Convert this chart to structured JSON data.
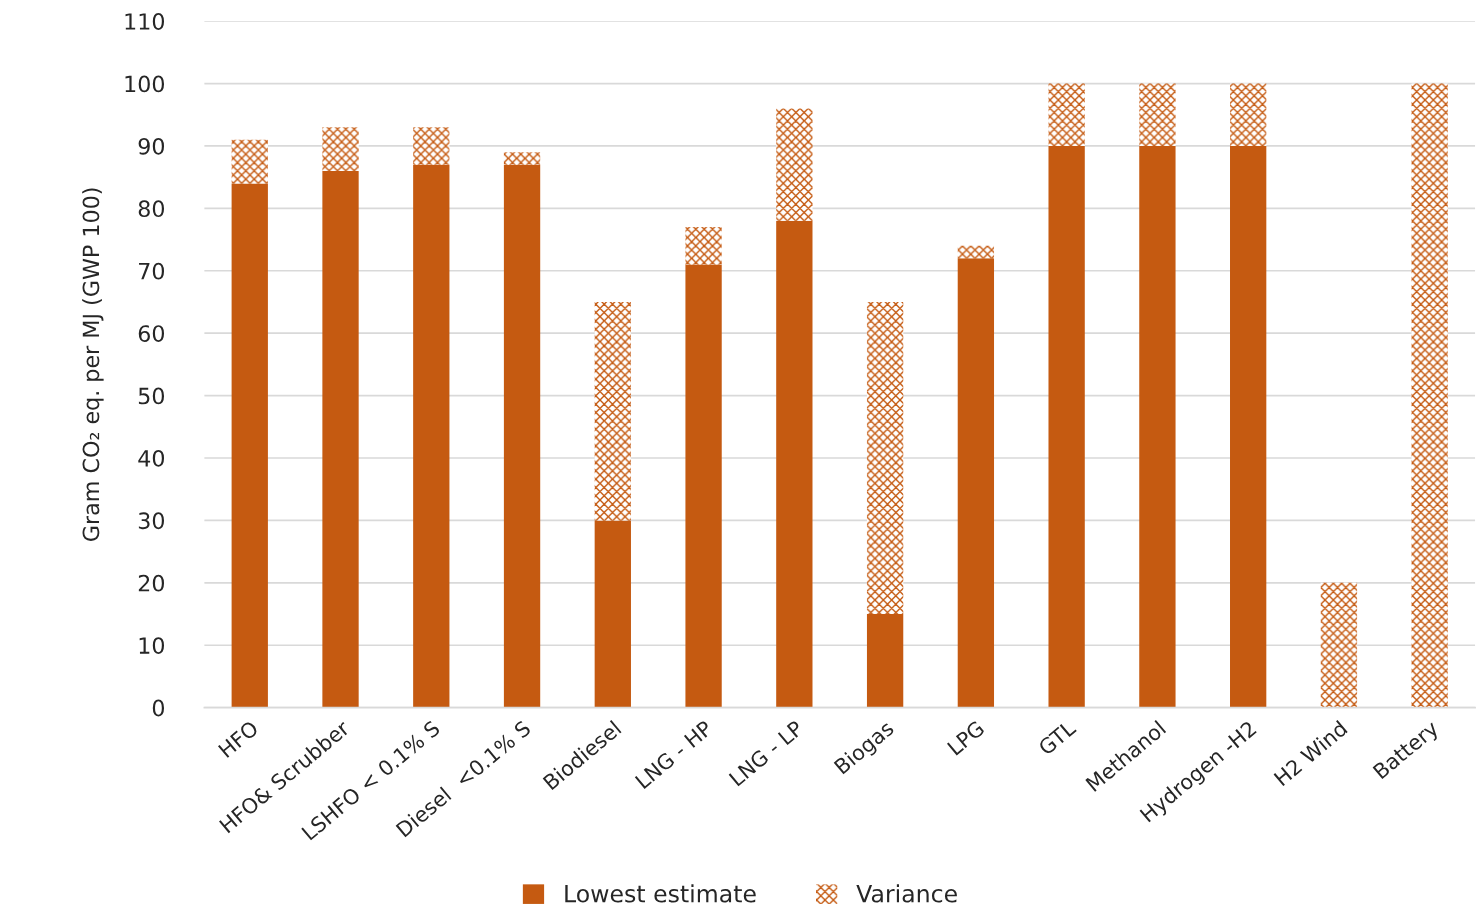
{
  "chart_data": {
    "type": "bar",
    "stacked": true,
    "ylabel": "Gram CO₂ eq. per MJ (GWP 100)",
    "categories": [
      "HFO",
      "HFO& Scrubber",
      "LSHFO < 0.1% S",
      "Diesel  <0.1% S",
      "Biodiesel",
      "LNG - HP",
      "LNG - LP",
      "Biogas",
      "LPG",
      "GTL",
      "Methanol",
      "Hydrogen -H2",
      "H2 Wind",
      "Battery"
    ],
    "series": [
      {
        "name": "Lowest estimate",
        "color": "#c55a11",
        "values": [
          84,
          86,
          87,
          87,
          30,
          71,
          78,
          15,
          72,
          90,
          90,
          90,
          0,
          0
        ]
      },
      {
        "name": "Variance",
        "color": "#c55a11",
        "values": [
          7,
          7,
          6,
          2,
          35,
          6,
          18,
          50,
          2,
          10,
          10,
          10,
          20,
          100
        ]
      }
    ],
    "ylim": [
      0,
      110
    ],
    "yticks": [
      0,
      10,
      20,
      30,
      40,
      50,
      60,
      70,
      80,
      90,
      100,
      110
    ],
    "grid": "y",
    "legend": "bottom"
  }
}
